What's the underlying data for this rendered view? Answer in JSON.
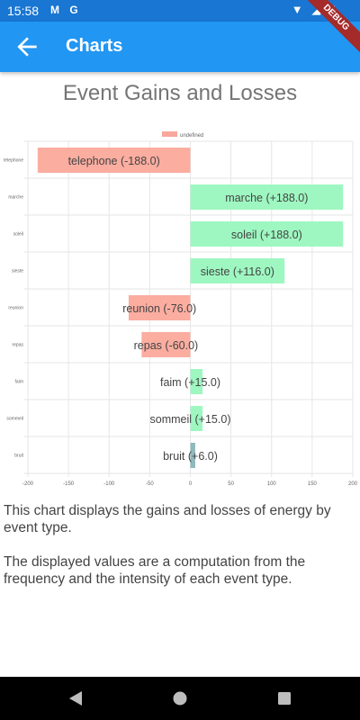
{
  "status_bar": {
    "time": "15:58",
    "left_icons": "M G",
    "right_icons": [
      "wifi-icon",
      "signal-icon",
      "battery-icon"
    ]
  },
  "app_bar": {
    "back_icon": "arrow-back-icon",
    "title": "Charts",
    "background": "#2196f3"
  },
  "debug_banner": "DEBUG",
  "chart_data": {
    "type": "bar",
    "orientation": "horizontal",
    "title": "Event Gains and Losses",
    "legend": {
      "label": "undefined",
      "position": "top-center"
    },
    "categories": [
      "telephone",
      "marche",
      "soleil",
      "sieste",
      "reunion",
      "repas",
      "faim",
      "sommeil",
      "bruit"
    ],
    "values": [
      -188.0,
      188.0,
      188.0,
      116.0,
      -76.0,
      -60.0,
      15.0,
      15.0,
      6.0
    ],
    "data_labels": [
      "telephone (-188.0)",
      "marche (+188.0)",
      "soleil (+188.0)",
      "sieste (+116.0)",
      "reunion (-76.0)",
      "repas (-60.0)",
      "faim (+15.0)",
      "sommeil (+15.0)",
      "bruit (+6.0)"
    ],
    "xlim": [
      -200,
      200
    ],
    "x_ticks": [
      -200,
      -150,
      -100,
      -50,
      0,
      50,
      100,
      150,
      200
    ],
    "x_tick_labels": [
      "-200",
      "-150",
      "-100",
      "-50",
      "0",
      "50",
      "100",
      "150",
      "200"
    ],
    "grid": true,
    "colors": {
      "positive": "#9ef7c1",
      "negative": "#fbada0",
      "small": "#8fb9bd",
      "legend": "#f7a79b"
    }
  },
  "description": {
    "paragraph1": "This chart displays the gains and losses of energy by event type.",
    "paragraph2": "The displayed values are a computation from the frequency and the intensity of each event type."
  },
  "nav_bar": [
    "back-nav-icon",
    "home-nav-icon",
    "recents-nav-icon"
  ]
}
